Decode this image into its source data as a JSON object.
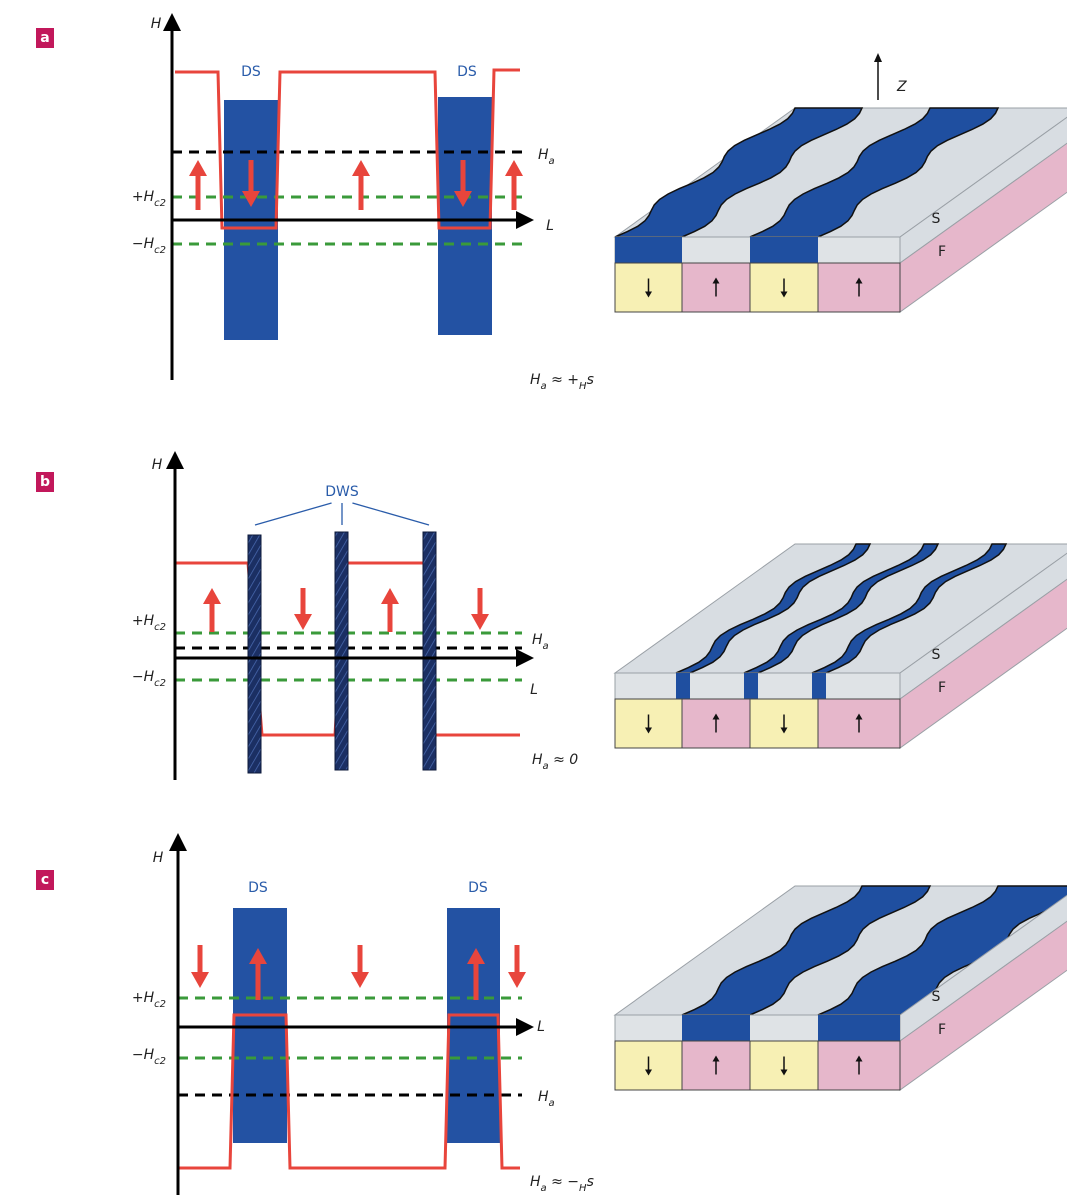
{
  "panels": [
    {
      "letter": "a",
      "y_axis": "H",
      "x_axis": "L",
      "band_labels": [
        "DS",
        "DS"
      ],
      "field": [
        "H",
        "a"
      ],
      "plus_hc2": [
        "+H",
        "c2"
      ],
      "minus_hc2": [
        "−H",
        "c2"
      ],
      "condition": [
        "H",
        "a",
        " ≈ +",
        "H",
        "s"
      ],
      "layers": {
        "top": "S",
        "bottom": "F"
      }
    },
    {
      "letter": "b",
      "y_axis": "H",
      "x_axis": "L",
      "wall_label": "DWS",
      "field": [
        "H",
        "a"
      ],
      "plus_hc2": [
        "+H",
        "c2"
      ],
      "minus_hc2": [
        "−H",
        "c2"
      ],
      "condition": [
        "H",
        "a",
        " ≈ 0"
      ],
      "layers": {
        "top": "S",
        "bottom": "F"
      }
    },
    {
      "letter": "c",
      "y_axis": "H",
      "x_axis": "L",
      "band_labels": [
        "DS",
        "DS"
      ],
      "field": [
        "H",
        "a"
      ],
      "plus_hc2": [
        "+H",
        "c2"
      ],
      "minus_hc2": [
        "−H",
        "c2"
      ],
      "condition": [
        "H",
        "a",
        " ≈ −",
        "H",
        "s"
      ],
      "layers": {
        "top": "S",
        "bottom": "F"
      }
    }
  ],
  "z_axis": "Z"
}
